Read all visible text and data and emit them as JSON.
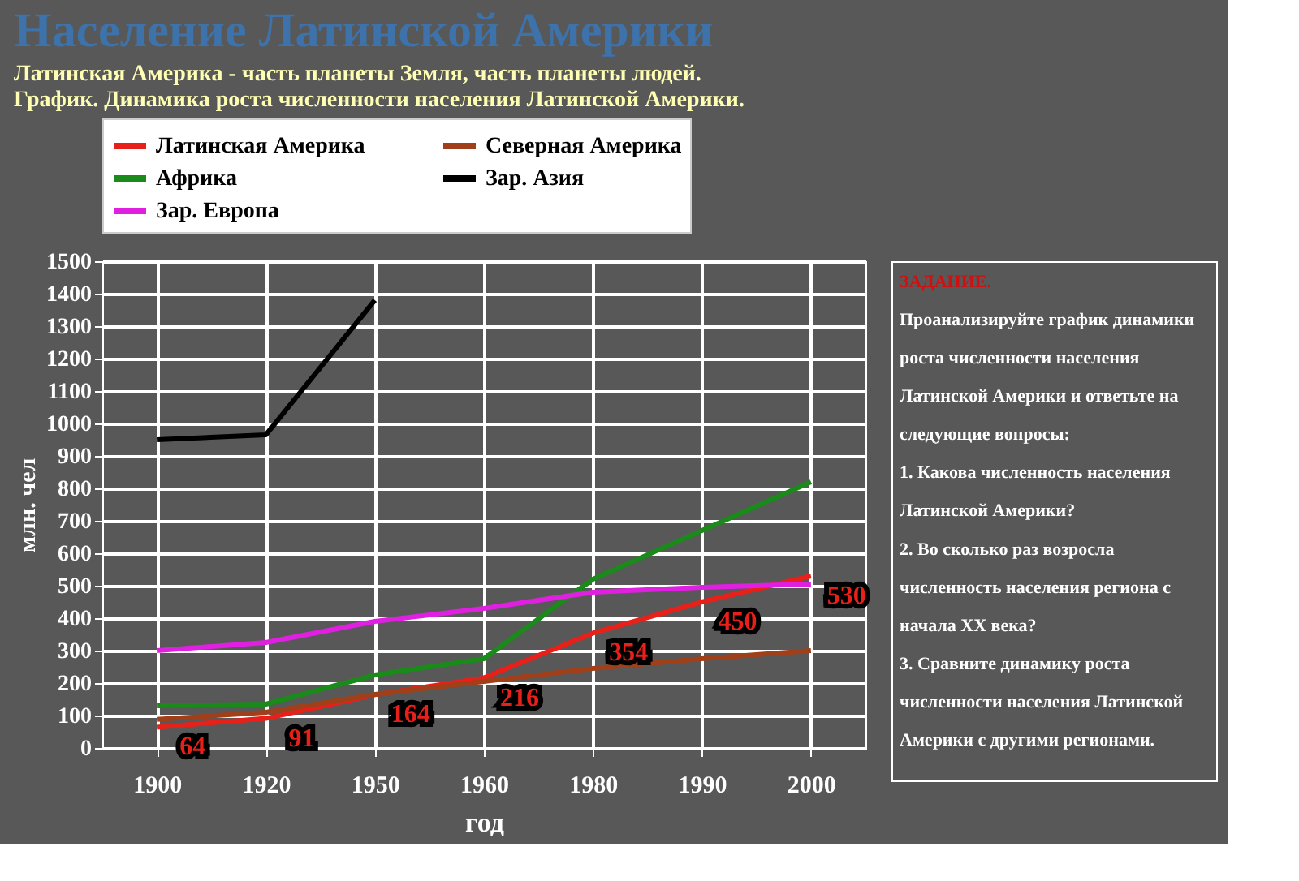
{
  "chart_data": [
    {
      "type": "line",
      "title": "Население Латинской Америки",
      "subtitle": "Латинская Америка - часть планеты Земля, часть планеты людей.",
      "annotations": [
        "График. Динамика роста численности населения Латинской Америки."
      ],
      "xlabel": "год",
      "ylabel": "млн. чел",
      "categories": [
        "1900",
        "1920",
        "1950",
        "1960",
        "1980",
        "1990",
        "2000"
      ],
      "series": [
        {
          "name": "Латинская Америка",
          "color": "#e8201a",
          "values": [
            64,
            91,
            164,
            216,
            354,
            450,
            530
          ],
          "value_labels": [
            "64",
            "91",
            "164",
            "216",
            "354",
            "450",
            "530"
          ]
        },
        {
          "name": "Северная Америка",
          "color": "#a0401a",
          "values": [
            88,
            110,
            165,
            205,
            245,
            275,
            300
          ]
        },
        {
          "name": "Африка",
          "color": "#1a8a1a",
          "values": [
            130,
            135,
            225,
            275,
            520,
            670,
            820
          ]
        },
        {
          "name": "Зар. Азия",
          "color": "#000000",
          "values": [
            950,
            965,
            1380,
            null,
            null,
            null,
            null
          ]
        },
        {
          "name": "Зар. Европа",
          "color": "#e020e0",
          "values": [
            300,
            325,
            390,
            430,
            480,
            495,
            505
          ]
        }
      ],
      "ylim": [
        0,
        1500
      ],
      "yticks": [
        0,
        100,
        200,
        300,
        400,
        500,
        600,
        700,
        800,
        900,
        1000,
        1100,
        1200,
        1300,
        1400,
        1500
      ],
      "grid": true,
      "legend": "top",
      "marker": "none",
      "line_style": "solid"
    },
    {
      "type": "other",
      "title": "ЗАДАНИЕ.",
      "annotations": [
        "Проанализируйте график динамики роста численности населения Латинской Америки и ответьте на следующие вопросы:",
        "1. Какова численность населения Латинской Америки?",
        "2. Во сколько раз возросла численность населения региона с начала XX века?",
        "3. Сравните динамику роста численности населения Латинской Америки с другими регионами."
      ]
    }
  ]
}
